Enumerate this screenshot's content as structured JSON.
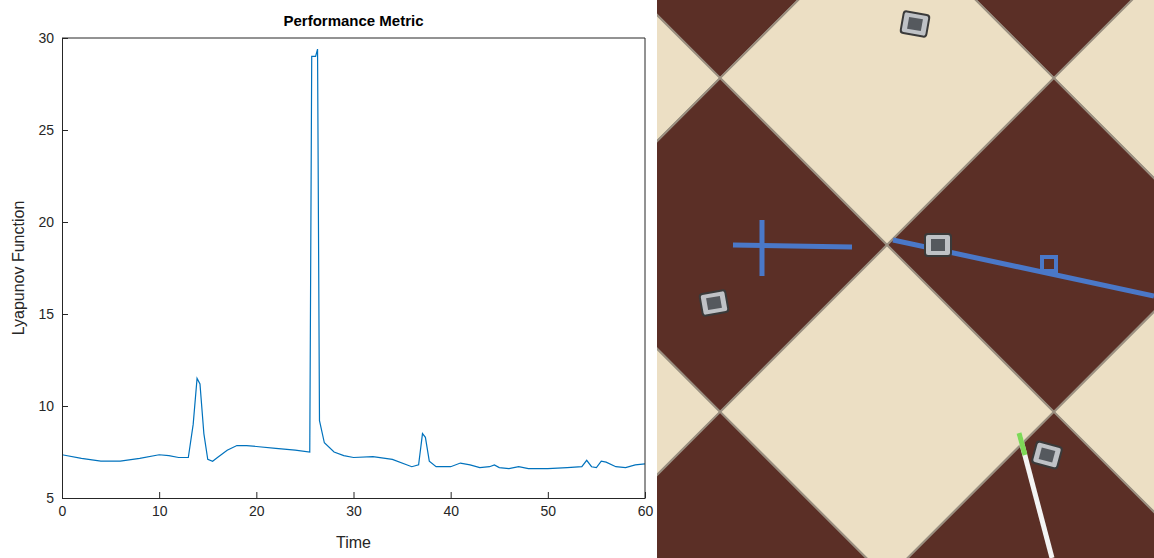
{
  "chart_data": {
    "type": "line",
    "title": "Performance Metric",
    "xlabel": "Time",
    "ylabel": "Lyapunov Function",
    "color": "#0072bd",
    "grid": false,
    "xlim": [
      0,
      60
    ],
    "xticks": [
      0,
      10,
      20,
      30,
      40,
      50,
      60
    ],
    "ylim": [
      5,
      30
    ],
    "yticks": [
      5,
      10,
      15,
      20,
      25,
      30
    ],
    "x": [
      0,
      2,
      4,
      6,
      8,
      10,
      11,
      12,
      13,
      13.5,
      13.9,
      14.2,
      14.6,
      15,
      15.5,
      16,
      17,
      18,
      19,
      20,
      22,
      24,
      25.5,
      25.7,
      26.1,
      26.3,
      26.5,
      27,
      28,
      29,
      30,
      32,
      34,
      36,
      36.7,
      37.1,
      37.4,
      37.8,
      38.5,
      40,
      41,
      42,
      43,
      44,
      44.5,
      45,
      46,
      47,
      48,
      50,
      52,
      53.5,
      54,
      54.5,
      55,
      55.5,
      56,
      57,
      58,
      59,
      60
    ],
    "values": [
      7.35,
      7.15,
      7.0,
      7.0,
      7.15,
      7.35,
      7.3,
      7.2,
      7.2,
      9.0,
      11.5,
      11.2,
      8.5,
      7.1,
      7.0,
      7.2,
      7.6,
      7.85,
      7.85,
      7.8,
      7.7,
      7.6,
      7.5,
      29.0,
      29.0,
      29.4,
      9.2,
      8.0,
      7.5,
      7.3,
      7.2,
      7.25,
      7.1,
      6.7,
      6.8,
      8.5,
      8.3,
      7.0,
      6.7,
      6.7,
      6.9,
      6.8,
      6.65,
      6.7,
      6.8,
      6.65,
      6.6,
      6.7,
      6.6,
      6.6,
      6.65,
      6.7,
      7.05,
      6.7,
      6.65,
      7.0,
      6.95,
      6.7,
      6.65,
      6.8,
      6.85
    ]
  }
}
